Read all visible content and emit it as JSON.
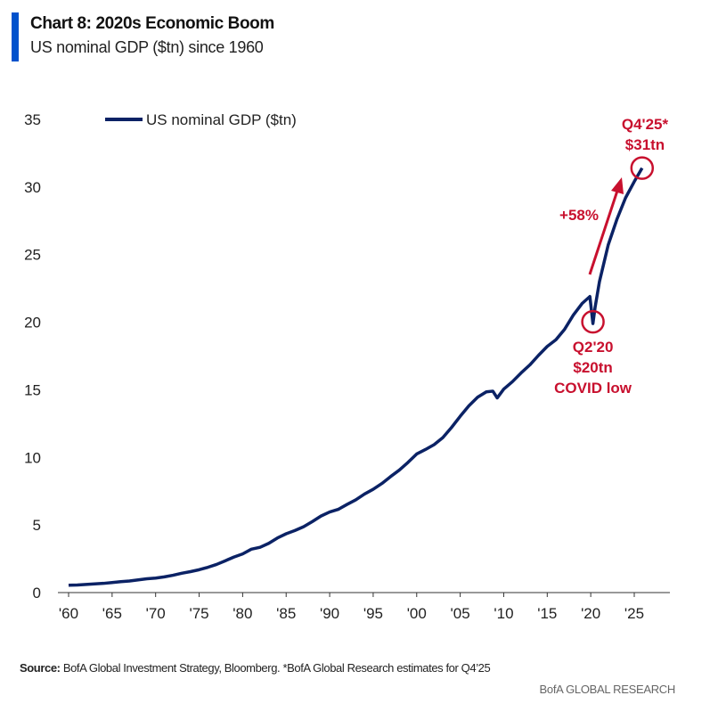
{
  "header": {
    "title": "Chart 8: 2020s Economic Boom",
    "subtitle": "US nominal GDP ($tn) since 1960"
  },
  "chart_data": {
    "type": "line",
    "title": "Chart 8: 2020s Economic Boom",
    "subtitle": "US nominal GDP ($tn) since 1960",
    "xlabel": "",
    "ylabel": "",
    "xlim": [
      1960,
      2028
    ],
    "ylim": [
      0,
      35
    ],
    "yticks": [
      0,
      5,
      10,
      15,
      20,
      25,
      30,
      35
    ],
    "xticks": [
      1960,
      1965,
      1970,
      1975,
      1980,
      1985,
      1990,
      1995,
      2000,
      2005,
      2010,
      2015,
      2020,
      2025
    ],
    "xtick_labels": [
      "'60",
      "'65",
      "'70",
      "'75",
      "'80",
      "'85",
      "'90",
      "'95",
      "'00",
      "'05",
      "'10",
      "'15",
      "'20",
      "'25"
    ],
    "grid": false,
    "legend": "top-left",
    "series": [
      {
        "name": "US nominal GDP ($tn)",
        "color": "#0b2265",
        "x": [
          1960,
          1961,
          1962,
          1963,
          1964,
          1965,
          1966,
          1967,
          1968,
          1969,
          1970,
          1971,
          1972,
          1973,
          1974,
          1975,
          1976,
          1977,
          1978,
          1979,
          1980,
          1981,
          1982,
          1983,
          1984,
          1985,
          1986,
          1987,
          1988,
          1989,
          1990,
          1991,
          1992,
          1993,
          1994,
          1995,
          1996,
          1997,
          1998,
          1999,
          2000,
          2001,
          2002,
          2003,
          2004,
          2005,
          2006,
          2007,
          2008,
          2008.75,
          2009.25,
          2010,
          2011,
          2012,
          2013,
          2014,
          2015,
          2016,
          2017,
          2018,
          2019,
          2019.9,
          2020.25,
          2020.5,
          2021,
          2022,
          2023,
          2024,
          2025,
          2025.9
        ],
        "y": [
          0.54,
          0.56,
          0.6,
          0.64,
          0.68,
          0.74,
          0.81,
          0.86,
          0.94,
          1.02,
          1.07,
          1.16,
          1.28,
          1.43,
          1.55,
          1.69,
          1.87,
          2.08,
          2.35,
          2.63,
          2.86,
          3.21,
          3.35,
          3.64,
          4.04,
          4.35,
          4.59,
          4.87,
          5.25,
          5.66,
          5.96,
          6.16,
          6.52,
          6.86,
          7.29,
          7.64,
          8.07,
          8.58,
          9.06,
          9.63,
          10.25,
          10.58,
          10.94,
          11.46,
          12.21,
          13.04,
          13.82,
          14.45,
          14.85,
          14.9,
          14.4,
          15.05,
          15.6,
          16.25,
          16.84,
          17.55,
          18.21,
          18.7,
          19.48,
          20.53,
          21.38,
          21.9,
          19.9,
          21.1,
          23.0,
          25.7,
          27.6,
          29.2,
          30.4,
          31.4
        ]
      }
    ],
    "annotations": [
      {
        "label_lines": [
          "Q2'20",
          "$20tn",
          "COVID low"
        ],
        "x": 2020.25,
        "y": 19.9,
        "color": "#c8102e"
      },
      {
        "label_lines": [
          "Q4'25*",
          "$31tn"
        ],
        "x": 2025.9,
        "y": 31.4,
        "color": "#c8102e"
      },
      {
        "label": "+58%",
        "color": "#c8102e"
      }
    ]
  },
  "footer": {
    "source_label": "Source:",
    "source_text": " BofA Global Investment Strategy, Bloomberg. *BofA Global Research estimates for Q4’25",
    "brand": "BofA GLOBAL RESEARCH"
  }
}
